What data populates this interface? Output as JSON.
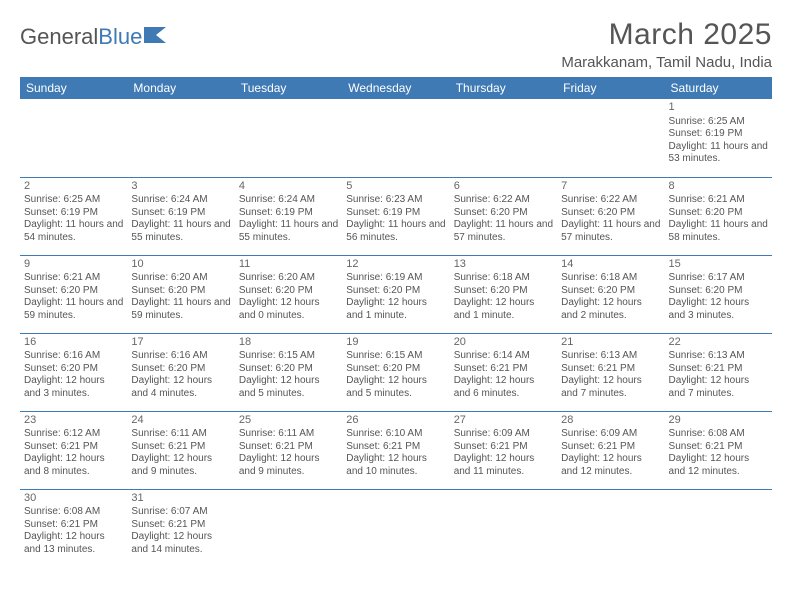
{
  "brand": {
    "part1": "General",
    "part2": "Blue"
  },
  "title": "March 2025",
  "location": "Marakkanam, Tamil Nadu, India",
  "colors": {
    "header_bg": "#3f7ab5",
    "header_fg": "#ffffff",
    "text": "#555555",
    "border": "#3f7ab5"
  },
  "typography": {
    "title_fontsize": 30,
    "location_fontsize": 15,
    "dayheader_fontsize": 12,
    "cell_fontsize": 10
  },
  "day_headers": [
    "Sunday",
    "Monday",
    "Tuesday",
    "Wednesday",
    "Thursday",
    "Friday",
    "Saturday"
  ],
  "first_weekday_index": 6,
  "days_in_month": 31,
  "days": {
    "1": {
      "sunrise": "6:25 AM",
      "sunset": "6:19 PM",
      "daylight": "11 hours and 53 minutes."
    },
    "2": {
      "sunrise": "6:25 AM",
      "sunset": "6:19 PM",
      "daylight": "11 hours and 54 minutes."
    },
    "3": {
      "sunrise": "6:24 AM",
      "sunset": "6:19 PM",
      "daylight": "11 hours and 55 minutes."
    },
    "4": {
      "sunrise": "6:24 AM",
      "sunset": "6:19 PM",
      "daylight": "11 hours and 55 minutes."
    },
    "5": {
      "sunrise": "6:23 AM",
      "sunset": "6:19 PM",
      "daylight": "11 hours and 56 minutes."
    },
    "6": {
      "sunrise": "6:22 AM",
      "sunset": "6:20 PM",
      "daylight": "11 hours and 57 minutes."
    },
    "7": {
      "sunrise": "6:22 AM",
      "sunset": "6:20 PM",
      "daylight": "11 hours and 57 minutes."
    },
    "8": {
      "sunrise": "6:21 AM",
      "sunset": "6:20 PM",
      "daylight": "11 hours and 58 minutes."
    },
    "9": {
      "sunrise": "6:21 AM",
      "sunset": "6:20 PM",
      "daylight": "11 hours and 59 minutes."
    },
    "10": {
      "sunrise": "6:20 AM",
      "sunset": "6:20 PM",
      "daylight": "11 hours and 59 minutes."
    },
    "11": {
      "sunrise": "6:20 AM",
      "sunset": "6:20 PM",
      "daylight": "12 hours and 0 minutes."
    },
    "12": {
      "sunrise": "6:19 AM",
      "sunset": "6:20 PM",
      "daylight": "12 hours and 1 minute."
    },
    "13": {
      "sunrise": "6:18 AM",
      "sunset": "6:20 PM",
      "daylight": "12 hours and 1 minute."
    },
    "14": {
      "sunrise": "6:18 AM",
      "sunset": "6:20 PM",
      "daylight": "12 hours and 2 minutes."
    },
    "15": {
      "sunrise": "6:17 AM",
      "sunset": "6:20 PM",
      "daylight": "12 hours and 3 minutes."
    },
    "16": {
      "sunrise": "6:16 AM",
      "sunset": "6:20 PM",
      "daylight": "12 hours and 3 minutes."
    },
    "17": {
      "sunrise": "6:16 AM",
      "sunset": "6:20 PM",
      "daylight": "12 hours and 4 minutes."
    },
    "18": {
      "sunrise": "6:15 AM",
      "sunset": "6:20 PM",
      "daylight": "12 hours and 5 minutes."
    },
    "19": {
      "sunrise": "6:15 AM",
      "sunset": "6:20 PM",
      "daylight": "12 hours and 5 minutes."
    },
    "20": {
      "sunrise": "6:14 AM",
      "sunset": "6:21 PM",
      "daylight": "12 hours and 6 minutes."
    },
    "21": {
      "sunrise": "6:13 AM",
      "sunset": "6:21 PM",
      "daylight": "12 hours and 7 minutes."
    },
    "22": {
      "sunrise": "6:13 AM",
      "sunset": "6:21 PM",
      "daylight": "12 hours and 7 minutes."
    },
    "23": {
      "sunrise": "6:12 AM",
      "sunset": "6:21 PM",
      "daylight": "12 hours and 8 minutes."
    },
    "24": {
      "sunrise": "6:11 AM",
      "sunset": "6:21 PM",
      "daylight": "12 hours and 9 minutes."
    },
    "25": {
      "sunrise": "6:11 AM",
      "sunset": "6:21 PM",
      "daylight": "12 hours and 9 minutes."
    },
    "26": {
      "sunrise": "6:10 AM",
      "sunset": "6:21 PM",
      "daylight": "12 hours and 10 minutes."
    },
    "27": {
      "sunrise": "6:09 AM",
      "sunset": "6:21 PM",
      "daylight": "12 hours and 11 minutes."
    },
    "28": {
      "sunrise": "6:09 AM",
      "sunset": "6:21 PM",
      "daylight": "12 hours and 12 minutes."
    },
    "29": {
      "sunrise": "6:08 AM",
      "sunset": "6:21 PM",
      "daylight": "12 hours and 12 minutes."
    },
    "30": {
      "sunrise": "6:08 AM",
      "sunset": "6:21 PM",
      "daylight": "12 hours and 13 minutes."
    },
    "31": {
      "sunrise": "6:07 AM",
      "sunset": "6:21 PM",
      "daylight": "12 hours and 14 minutes."
    }
  },
  "labels": {
    "sunrise": "Sunrise:",
    "sunset": "Sunset:",
    "daylight": "Daylight:"
  }
}
